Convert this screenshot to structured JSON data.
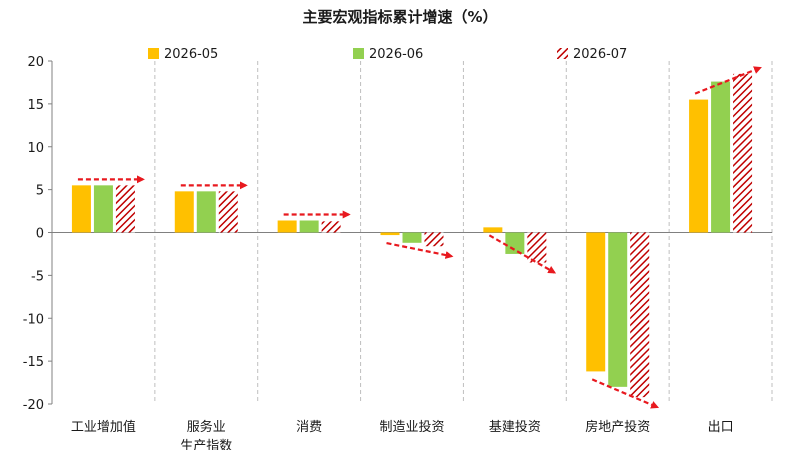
{
  "chart_data": {
    "type": "bar",
    "title": "主要宏观指标累计增速（%）",
    "categories": [
      [
        "工业增加值"
      ],
      [
        "服务业",
        "生产指数"
      ],
      [
        "消费"
      ],
      [
        "制造业投资"
      ],
      [
        "基建投资"
      ],
      [
        "房地产投资"
      ],
      [
        "出口"
      ]
    ],
    "series": [
      {
        "name": "2026-05",
        "color": "#FFC000",
        "pattern": "solid",
        "values": [
          5.5,
          4.8,
          1.4,
          -0.3,
          0.6,
          -16.2,
          15.5
        ]
      },
      {
        "name": "2026-06",
        "color": "#92D050",
        "pattern": "solid",
        "values": [
          5.5,
          4.8,
          1.4,
          -1.2,
          -2.5,
          -18.0,
          17.6
        ]
      },
      {
        "name": "2026-07",
        "color": "#C00000",
        "pattern": "hatched",
        "values": [
          5.5,
          4.8,
          1.3,
          -1.6,
          -3.5,
          -19.2,
          18.5
        ]
      }
    ],
    "ylim": [
      -20,
      20
    ],
    "yticks": [
      20,
      15,
      10,
      5,
      0,
      -5,
      -10,
      -15,
      -20
    ],
    "xlabel": "",
    "ylabel": "",
    "legend": "top",
    "grid": "vertical-dashed-separators",
    "annotations": "red dashed trend arrows over each category group"
  }
}
